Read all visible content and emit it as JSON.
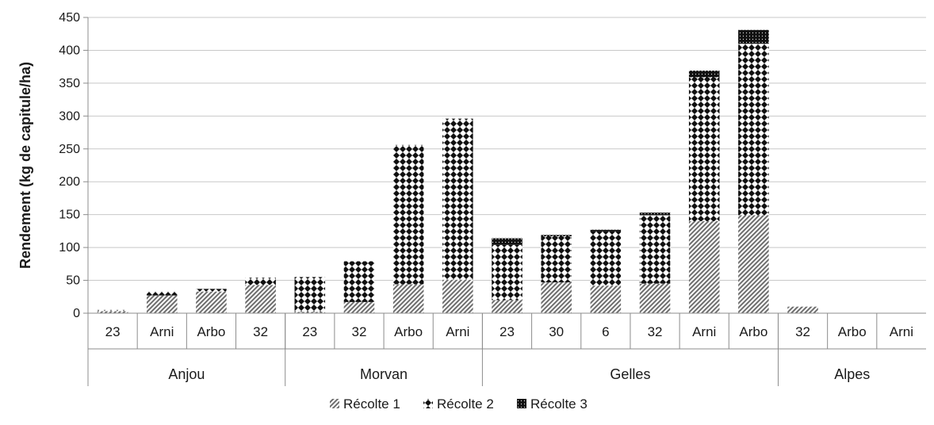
{
  "chart_data": {
    "type": "bar",
    "stacked": true,
    "ylabel": "Rendement (kg de capitule/ha)",
    "ylim": [
      0,
      450
    ],
    "yticks": [
      0,
      50,
      100,
      150,
      200,
      250,
      300,
      350,
      400,
      450
    ],
    "grid": true,
    "groups": [
      {
        "name": "Anjou",
        "count": 4
      },
      {
        "name": "Morvan",
        "count": 4
      },
      {
        "name": "Gelles",
        "count": 6
      },
      {
        "name": "Alpes",
        "count": 3
      }
    ],
    "categories": [
      "23",
      "Arni",
      "Arbo",
      "32",
      "23",
      "32",
      "Arbo",
      "Arni",
      "23",
      "30",
      "6",
      "32",
      "Arni",
      "Arbo",
      "32",
      "Arbo",
      "Arni"
    ],
    "series": [
      {
        "name": "Récolte 1",
        "pattern": "hatch",
        "color": "#6e6e6e",
        "values": [
          3,
          27,
          33,
          43,
          2,
          17,
          44,
          51,
          20,
          47,
          42,
          45,
          140,
          149,
          10,
          0,
          0
        ]
      },
      {
        "name": "Récolte 2",
        "pattern": "dots",
        "color": "#111111",
        "values": [
          2,
          6,
          4,
          11,
          53,
          62,
          212,
          245,
          84,
          70,
          83,
          104,
          219,
          261,
          0,
          0,
          0
        ]
      },
      {
        "name": "Récolte 3",
        "pattern": "dense",
        "color": "#111111",
        "values": [
          0,
          0,
          0,
          0,
          0,
          0,
          0,
          0,
          10,
          2,
          2,
          4,
          10,
          21,
          0,
          0,
          0
        ]
      }
    ],
    "legend_position": "bottom"
  }
}
